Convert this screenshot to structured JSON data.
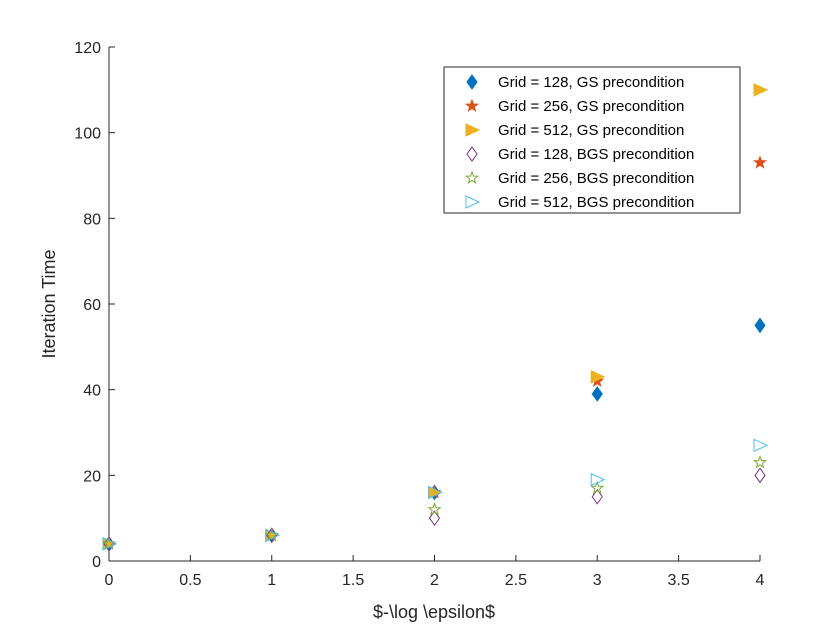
{
  "chart_data": {
    "type": "scatter",
    "title": "",
    "xlabel": "$-\\log \\epsilon$",
    "ylabel": "Iteration Time",
    "xlim": [
      0,
      4
    ],
    "ylim": [
      0,
      120
    ],
    "xticks": [
      0,
      0.5,
      1,
      1.5,
      2,
      2.5,
      3,
      3.5,
      4
    ],
    "xtick_labels": [
      "0",
      "0.5",
      "1",
      "1.5",
      "2",
      "2.5",
      "3",
      "3.5",
      "4"
    ],
    "yticks": [
      0,
      20,
      40,
      60,
      80,
      100,
      120
    ],
    "ytick_labels": [
      "0",
      "20",
      "40",
      "60",
      "80",
      "100",
      "120"
    ],
    "grid": false,
    "legend_position": "top-right",
    "series": [
      {
        "name": "Grid = 128, GS precondition",
        "marker": "diamond-filled",
        "color": "#0072BD",
        "x": [
          0,
          1,
          2,
          3,
          4
        ],
        "y": [
          4,
          6,
          16,
          39,
          55
        ]
      },
      {
        "name": "Grid = 256, GS precondition",
        "marker": "star-filled",
        "color": "#D95319",
        "x": [
          0,
          1,
          2,
          3,
          4
        ],
        "y": [
          4,
          6,
          16,
          42,
          93
        ]
      },
      {
        "name": "Grid = 512, GS precondition",
        "marker": "triangle-right-filled",
        "color": "#EDB120",
        "x": [
          0,
          1,
          2,
          3,
          4
        ],
        "y": [
          4,
          6,
          16,
          43,
          110
        ]
      },
      {
        "name": "Grid = 128, BGS precondition",
        "marker": "diamond-open",
        "color": "#7E2F8E",
        "x": [
          0,
          1,
          2,
          3,
          4
        ],
        "y": [
          4,
          6,
          10,
          15,
          20
        ]
      },
      {
        "name": "Grid = 256, BGS precondition",
        "marker": "star-open",
        "color": "#77AC30",
        "x": [
          0,
          1,
          2,
          3,
          4
        ],
        "y": [
          4,
          6,
          12,
          17,
          23
        ]
      },
      {
        "name": "Grid = 512, BGS precondition",
        "marker": "triangle-right-open",
        "color": "#4DBEEE",
        "x": [
          0,
          1,
          2,
          3,
          4
        ],
        "y": [
          4,
          6,
          16,
          19,
          27
        ]
      }
    ]
  }
}
